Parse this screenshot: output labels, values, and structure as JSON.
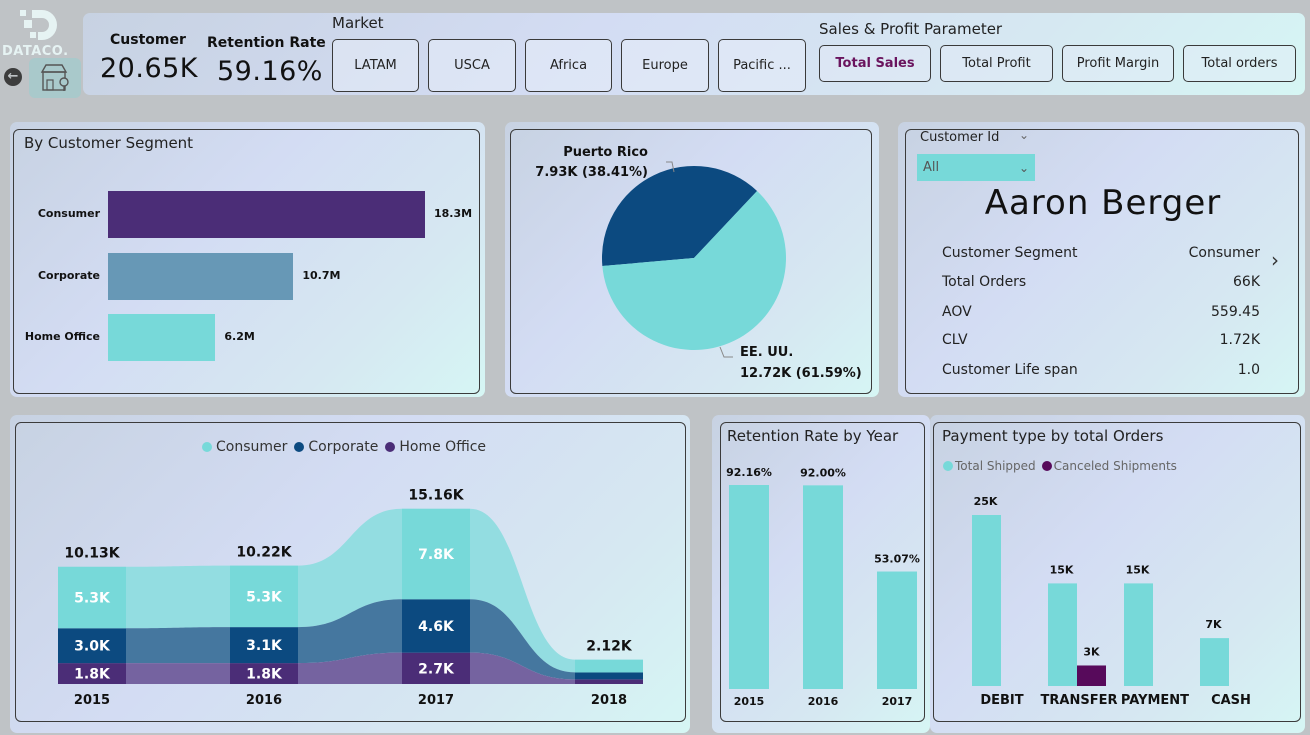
{
  "brand": {
    "name": "DATACO.",
    "logo_icon": "dataco-d-logo-icon",
    "back_icon": "back-arrow-icon",
    "store_icon": "store-location-icon"
  },
  "kpis": {
    "customer": {
      "label": "Customer",
      "value": "20.65K"
    },
    "retention": {
      "label": "Retention Rate",
      "value": "59.16%"
    }
  },
  "market": {
    "label": "Market",
    "options": [
      "LATAM",
      "USCA",
      "Africa",
      "Europe",
      "Pacific ..."
    ]
  },
  "parameter": {
    "label": "Sales & Profit Parameter",
    "options": [
      "Total Sales",
      "Total Profit",
      "Profit Margin",
      "Total orders"
    ],
    "selected": "Total Sales"
  },
  "colors": {
    "consumer": "#77d9d9",
    "corporate": "#0c4a80",
    "home_office": "#4b2d77",
    "corporate_bar": "#6798b6",
    "canceled": "#570a5b",
    "active_param": "#6a145e"
  },
  "segment_chart": {
    "title": "By Customer Segment"
  },
  "customer_card": {
    "slicer_label": "Customer Id",
    "slicer_value": "All",
    "name": "Aaron Berger",
    "rows": [
      {
        "label": "Customer Segment",
        "value": "Consumer"
      },
      {
        "label": "Total Orders",
        "value": "66K"
      },
      {
        "label": "AOV",
        "value": "559.45"
      },
      {
        "label": "CLV",
        "value": "1.72K"
      },
      {
        "label": "Customer Life span",
        "value": "1.0"
      }
    ]
  },
  "retention_chart": {
    "title": "Retention Rate by Year"
  },
  "payment_chart": {
    "title": "Payment type by total Orders"
  },
  "chart_data": [
    {
      "id": "segment",
      "type": "bar",
      "orientation": "horizontal",
      "title": "By Customer Segment",
      "categories": [
        "Consumer",
        "Corporate",
        "Home Office"
      ],
      "values": [
        18.3,
        10.7,
        6.2
      ],
      "labels": [
        "18.3M",
        "10.7M",
        "6.2M"
      ],
      "unit": "M",
      "xlim": [
        0,
        20
      ]
    },
    {
      "id": "country_pie",
      "type": "pie",
      "title": "",
      "slices": [
        {
          "name": "Puerto Rico",
          "value": 7.93,
          "label": "7.93K (38.41%)",
          "percent": 38.41
        },
        {
          "name": "EE. UU.",
          "value": 12.72,
          "label": "12.72K (61.59%)",
          "percent": 61.59
        }
      ]
    },
    {
      "id": "ribbon",
      "type": "bar",
      "stacked": true,
      "title": "",
      "categories": [
        "2015",
        "2016",
        "2017",
        "2018"
      ],
      "totals": [
        "10.13K",
        "10.22K",
        "15.16K",
        "2.12K"
      ],
      "legend": [
        "Consumer",
        "Corporate",
        "Home Office"
      ],
      "legend_position": "top-center",
      "series": [
        {
          "name": "Home Office",
          "values": [
            1.8,
            1.8,
            2.7,
            0.4
          ],
          "labels": [
            "1.8K",
            "1.8K",
            "2.7K",
            ""
          ]
        },
        {
          "name": "Corporate",
          "values": [
            3.0,
            3.1,
            4.6,
            0.6
          ],
          "labels": [
            "3.0K",
            "3.1K",
            "4.6K",
            ""
          ]
        },
        {
          "name": "Consumer",
          "values": [
            5.3,
            5.3,
            7.8,
            1.1
          ],
          "labels": [
            "5.3K",
            "5.3K",
            "7.8K",
            ""
          ]
        }
      ],
      "ylim": [
        0,
        16
      ]
    },
    {
      "id": "retention",
      "type": "bar",
      "title": "Retention Rate by Year",
      "categories": [
        "2015",
        "2016",
        "2017"
      ],
      "values": [
        92.16,
        92.0,
        53.07
      ],
      "labels": [
        "92.16%",
        "92.00%",
        "53.07%"
      ],
      "ylim": [
        0,
        100
      ]
    },
    {
      "id": "payment",
      "type": "bar",
      "title": "Payment type by total Orders",
      "categories": [
        "DEBIT",
        "TRANSFER",
        "PAYMENT",
        "CASH"
      ],
      "legend": [
        "Total Shipped",
        "Canceled Shipments"
      ],
      "legend_position": "top-left",
      "series": [
        {
          "name": "Total Shipped",
          "values": [
            25,
            15,
            15,
            7
          ],
          "labels": [
            "25K",
            "15K",
            "15K",
            "7K"
          ]
        },
        {
          "name": "Canceled Shipments",
          "values": [
            0,
            3,
            0,
            0
          ],
          "labels": [
            "",
            "3K",
            "",
            ""
          ]
        }
      ],
      "ylim": [
        0,
        25
      ]
    }
  ]
}
